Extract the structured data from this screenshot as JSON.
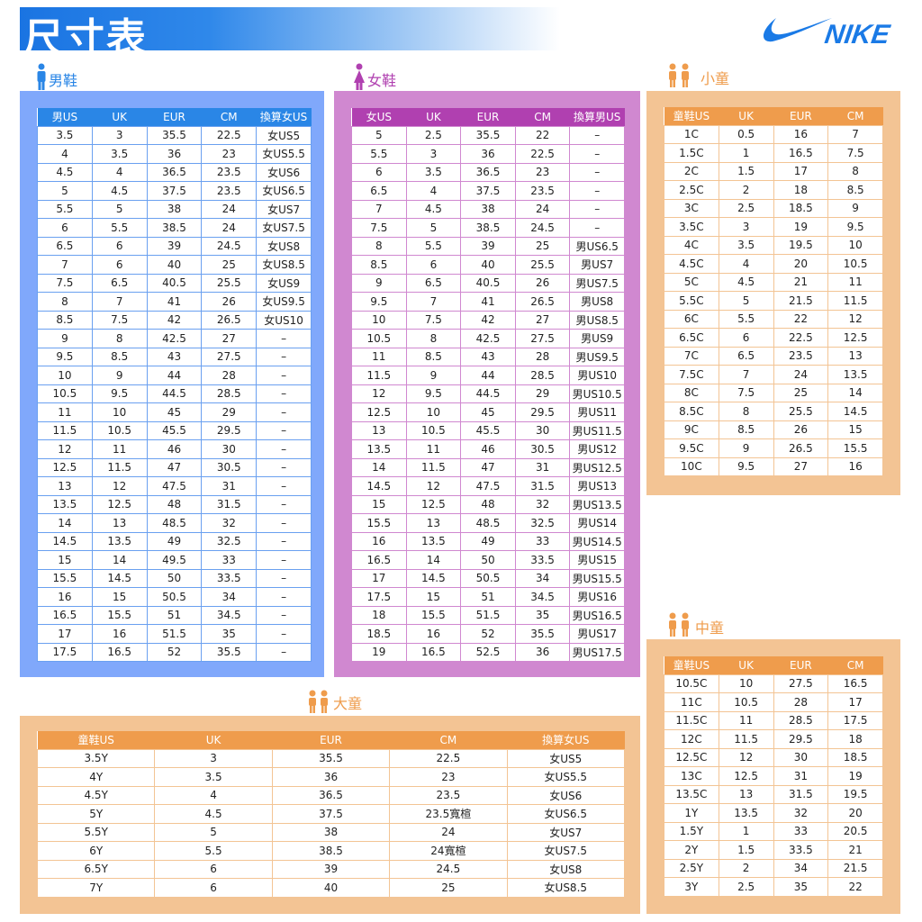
{
  "title": "尺寸表",
  "logo": "NIKE",
  "colors": {
    "men": "#2a86e6",
    "men_panel": "#80a8fb",
    "women": "#b040b0",
    "women_panel": "#d088d0",
    "kids": "#ef9c4c",
    "kids_panel": "#f3c494"
  },
  "men": {
    "title": "男鞋",
    "icon": "man-icon",
    "headers": [
      "男US",
      "UK",
      "EUR",
      "CM",
      "換算女US"
    ],
    "rows": [
      [
        "3.5",
        "3",
        "35.5",
        "22.5",
        "女US5"
      ],
      [
        "4",
        "3.5",
        "36",
        "23",
        "女US5.5"
      ],
      [
        "4.5",
        "4",
        "36.5",
        "23.5",
        "女US6"
      ],
      [
        "5",
        "4.5",
        "37.5",
        "23.5",
        "女US6.5"
      ],
      [
        "5.5",
        "5",
        "38",
        "24",
        "女US7"
      ],
      [
        "6",
        "5.5",
        "38.5",
        "24",
        "女US7.5"
      ],
      [
        "6.5",
        "6",
        "39",
        "24.5",
        "女US8"
      ],
      [
        "7",
        "6",
        "40",
        "25",
        "女US8.5"
      ],
      [
        "7.5",
        "6.5",
        "40.5",
        "25.5",
        "女US9"
      ],
      [
        "8",
        "7",
        "41",
        "26",
        "女US9.5"
      ],
      [
        "8.5",
        "7.5",
        "42",
        "26.5",
        "女US10"
      ],
      [
        "9",
        "8",
        "42.5",
        "27",
        "–"
      ],
      [
        "9.5",
        "8.5",
        "43",
        "27.5",
        "–"
      ],
      [
        "10",
        "9",
        "44",
        "28",
        "–"
      ],
      [
        "10.5",
        "9.5",
        "44.5",
        "28.5",
        "–"
      ],
      [
        "11",
        "10",
        "45",
        "29",
        "–"
      ],
      [
        "11.5",
        "10.5",
        "45.5",
        "29.5",
        "–"
      ],
      [
        "12",
        "11",
        "46",
        "30",
        "–"
      ],
      [
        "12.5",
        "11.5",
        "47",
        "30.5",
        "–"
      ],
      [
        "13",
        "12",
        "47.5",
        "31",
        "–"
      ],
      [
        "13.5",
        "12.5",
        "48",
        "31.5",
        "–"
      ],
      [
        "14",
        "13",
        "48.5",
        "32",
        "–"
      ],
      [
        "14.5",
        "13.5",
        "49",
        "32.5",
        "–"
      ],
      [
        "15",
        "14",
        "49.5",
        "33",
        "–"
      ],
      [
        "15.5",
        "14.5",
        "50",
        "33.5",
        "–"
      ],
      [
        "16",
        "15",
        "50.5",
        "34",
        "–"
      ],
      [
        "16.5",
        "15.5",
        "51",
        "34.5",
        "–"
      ],
      [
        "17",
        "16",
        "51.5",
        "35",
        "–"
      ],
      [
        "17.5",
        "16.5",
        "52",
        "35.5",
        "–"
      ]
    ]
  },
  "women": {
    "title": "女鞋",
    "icon": "woman-icon",
    "headers": [
      "女US",
      "UK",
      "EUR",
      "CM",
      "換算男US"
    ],
    "rows": [
      [
        "5",
        "2.5",
        "35.5",
        "22",
        "–"
      ],
      [
        "5.5",
        "3",
        "36",
        "22.5",
        "–"
      ],
      [
        "6",
        "3.5",
        "36.5",
        "23",
        "–"
      ],
      [
        "6.5",
        "4",
        "37.5",
        "23.5",
        "–"
      ],
      [
        "7",
        "4.5",
        "38",
        "24",
        "–"
      ],
      [
        "7.5",
        "5",
        "38.5",
        "24.5",
        "–"
      ],
      [
        "8",
        "5.5",
        "39",
        "25",
        "男US6.5"
      ],
      [
        "8.5",
        "6",
        "40",
        "25.5",
        "男US7"
      ],
      [
        "9",
        "6.5",
        "40.5",
        "26",
        "男US7.5"
      ],
      [
        "9.5",
        "7",
        "41",
        "26.5",
        "男US8"
      ],
      [
        "10",
        "7.5",
        "42",
        "27",
        "男US8.5"
      ],
      [
        "10.5",
        "8",
        "42.5",
        "27.5",
        "男US9"
      ],
      [
        "11",
        "8.5",
        "43",
        "28",
        "男US9.5"
      ],
      [
        "11.5",
        "9",
        "44",
        "28.5",
        "男US10"
      ],
      [
        "12",
        "9.5",
        "44.5",
        "29",
        "男US10.5"
      ],
      [
        "12.5",
        "10",
        "45",
        "29.5",
        "男US11"
      ],
      [
        "13",
        "10.5",
        "45.5",
        "30",
        "男US11.5"
      ],
      [
        "13.5",
        "11",
        "46",
        "30.5",
        "男US12"
      ],
      [
        "14",
        "11.5",
        "47",
        "31",
        "男US12.5"
      ],
      [
        "14.5",
        "12",
        "47.5",
        "31.5",
        "男US13"
      ],
      [
        "15",
        "12.5",
        "48",
        "32",
        "男US13.5"
      ],
      [
        "15.5",
        "13",
        "48.5",
        "32.5",
        "男US14"
      ],
      [
        "16",
        "13.5",
        "49",
        "33",
        "男US14.5"
      ],
      [
        "16.5",
        "14",
        "50",
        "33.5",
        "男US15"
      ],
      [
        "17",
        "14.5",
        "50.5",
        "34",
        "男US15.5"
      ],
      [
        "17.5",
        "15",
        "51",
        "34.5",
        "男US16"
      ],
      [
        "18",
        "15.5",
        "51.5",
        "35",
        "男US16.5"
      ],
      [
        "18.5",
        "16",
        "52",
        "35.5",
        "男US17"
      ],
      [
        "19",
        "16.5",
        "52.5",
        "36",
        "男US17.5"
      ]
    ]
  },
  "small_kids": {
    "title": "小童",
    "icon": "children-icon",
    "headers": [
      "童鞋US",
      "UK",
      "EUR",
      "CM"
    ],
    "rows": [
      [
        "1C",
        "0.5",
        "16",
        "7"
      ],
      [
        "1.5C",
        "1",
        "16.5",
        "7.5"
      ],
      [
        "2C",
        "1.5",
        "17",
        "8"
      ],
      [
        "2.5C",
        "2",
        "18",
        "8.5"
      ],
      [
        "3C",
        "2.5",
        "18.5",
        "9"
      ],
      [
        "3.5C",
        "3",
        "19",
        "9.5"
      ],
      [
        "4C",
        "3.5",
        "19.5",
        "10"
      ],
      [
        "4.5C",
        "4",
        "20",
        "10.5"
      ],
      [
        "5C",
        "4.5",
        "21",
        "11"
      ],
      [
        "5.5C",
        "5",
        "21.5",
        "11.5"
      ],
      [
        "6C",
        "5.5",
        "22",
        "12"
      ],
      [
        "6.5C",
        "6",
        "22.5",
        "12.5"
      ],
      [
        "7C",
        "6.5",
        "23.5",
        "13"
      ],
      [
        "7.5C",
        "7",
        "24",
        "13.5"
      ],
      [
        "8C",
        "7.5",
        "25",
        "14"
      ],
      [
        "8.5C",
        "8",
        "25.5",
        "14.5"
      ],
      [
        "9C",
        "8.5",
        "26",
        "15"
      ],
      [
        "9.5C",
        "9",
        "26.5",
        "15.5"
      ],
      [
        "10C",
        "9.5",
        "27",
        "16"
      ]
    ]
  },
  "mid_kids": {
    "title": "中童",
    "icon": "children-icon",
    "headers": [
      "童鞋US",
      "UK",
      "EUR",
      "CM"
    ],
    "rows": [
      [
        "10.5C",
        "10",
        "27.5",
        "16.5"
      ],
      [
        "11C",
        "10.5",
        "28",
        "17"
      ],
      [
        "11.5C",
        "11",
        "28.5",
        "17.5"
      ],
      [
        "12C",
        "11.5",
        "29.5",
        "18"
      ],
      [
        "12.5C",
        "12",
        "30",
        "18.5"
      ],
      [
        "13C",
        "12.5",
        "31",
        "19"
      ],
      [
        "13.5C",
        "13",
        "31.5",
        "19.5"
      ],
      [
        "1Y",
        "13.5",
        "32",
        "20"
      ],
      [
        "1.5Y",
        "1",
        "33",
        "20.5"
      ],
      [
        "2Y",
        "1.5",
        "33.5",
        "21"
      ],
      [
        "2.5Y",
        "2",
        "34",
        "21.5"
      ],
      [
        "3Y",
        "2.5",
        "35",
        "22"
      ]
    ]
  },
  "big_kids": {
    "title": "大童",
    "icon": "children-icon",
    "headers": [
      "童鞋US",
      "UK",
      "EUR",
      "CM",
      "換算女US"
    ],
    "rows": [
      [
        "3.5Y",
        "3",
        "35.5",
        "22.5",
        "女US5"
      ],
      [
        "4Y",
        "3.5",
        "36",
        "23",
        "女US5.5"
      ],
      [
        "4.5Y",
        "4",
        "36.5",
        "23.5",
        "女US6"
      ],
      [
        "5Y",
        "4.5",
        "37.5",
        "23.5寬楦",
        "女US6.5"
      ],
      [
        "5.5Y",
        "5",
        "38",
        "24",
        "女US7"
      ],
      [
        "6Y",
        "5.5",
        "38.5",
        "24寬楦",
        "女US7.5"
      ],
      [
        "6.5Y",
        "6",
        "39",
        "24.5",
        "女US8"
      ],
      [
        "7Y",
        "6",
        "40",
        "25",
        "女US8.5"
      ]
    ]
  }
}
